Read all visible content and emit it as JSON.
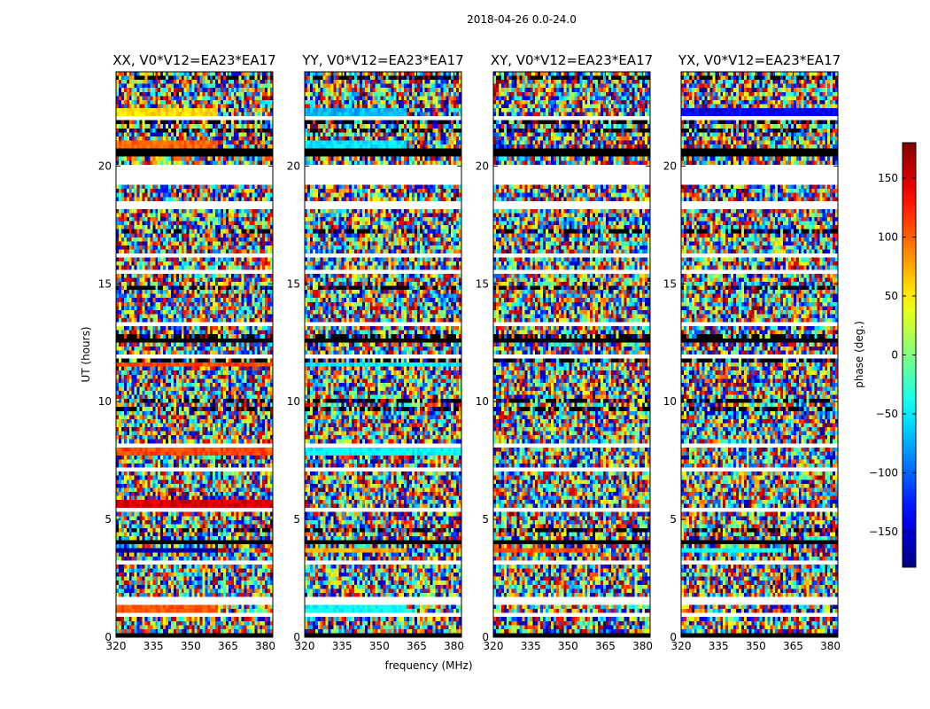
{
  "figure": {
    "suptitle": "2018-04-26 0.0-24.0",
    "xlabel": "frequency (MHz)",
    "ylabel": "UT (hours)",
    "colorbar_label": "phase (deg.)"
  },
  "chart_data": {
    "type": "heatmap",
    "description_of_axes": "phase vs frequency and UT, four polarization panels",
    "panels": [
      {
        "title": "XX, V0*V12=EA23*EA17",
        "polarization": "XX"
      },
      {
        "title": "YY, V0*V12=EA23*EA17",
        "polarization": "YY"
      },
      {
        "title": "XY, V0*V12=EA23*EA17",
        "polarization": "XY"
      },
      {
        "title": "YX, V0*V12=EA23*EA17",
        "polarization": "YX"
      }
    ],
    "x": {
      "label": "frequency (MHz)",
      "range": [
        320,
        383
      ],
      "ticks": [
        320,
        335,
        350,
        365,
        380
      ],
      "tick_labels": [
        "320",
        "335",
        "350",
        "365",
        "380"
      ]
    },
    "y": {
      "label": "UT (hours)",
      "range": [
        0,
        24
      ],
      "ticks": [
        0,
        5,
        10,
        15,
        20
      ],
      "tick_labels": [
        "0",
        "5",
        "10",
        "15",
        "20"
      ]
    },
    "colorbar": {
      "label": "phase (deg.)",
      "range": [
        -180,
        180
      ],
      "colormap": "jet",
      "ticks": [
        -150,
        -100,
        -50,
        0,
        50,
        100,
        150
      ],
      "tick_labels": [
        "−150",
        "−100",
        "−50",
        "0",
        "50",
        "100",
        "150"
      ]
    },
    "blank_time_ranges_hours": [
      [
        0.85,
        1.0
      ],
      [
        1.45,
        1.65
      ],
      [
        18.2,
        18.5
      ],
      [
        19.2,
        20.0
      ],
      [
        16.1,
        16.3
      ],
      [
        15.4,
        15.55
      ],
      [
        13.2,
        13.35
      ],
      [
        11.8,
        11.95
      ],
      [
        8.0,
        8.15
      ],
      [
        7.0,
        7.15
      ],
      [
        5.35,
        5.5
      ],
      [
        3.1,
        3.2
      ],
      [
        2.0,
        2.1
      ],
      [
        21.95,
        22.05
      ],
      [
        22.6,
        22.7
      ]
    ],
    "flagged_time_ranges_hours": [
      [
        20.45,
        20.75
      ],
      [
        4.0,
        4.15
      ],
      [
        12.55,
        12.7
      ],
      [
        0.05,
        0.15
      ]
    ],
    "coherent_phase_bands": [
      {
        "panel": "XX",
        "ut_range": [
          22.05,
          22.45
        ],
        "phase_deg": 60,
        "freq_range": [
          320,
          361
        ]
      },
      {
        "panel": "XX",
        "ut_range": [
          20.75,
          21.15
        ],
        "phase_deg": 100,
        "freq_range": [
          320,
          361
        ]
      },
      {
        "panel": "XX",
        "ut_range": [
          11.5,
          11.7
        ],
        "phase_deg": 110,
        "freq_range": [
          320,
          383
        ]
      },
      {
        "panel": "XX",
        "ut_range": [
          7.7,
          8.0
        ],
        "phase_deg": 110,
        "freq_range": [
          320,
          383
        ]
      },
      {
        "panel": "XX",
        "ut_range": [
          5.55,
          5.75
        ],
        "phase_deg": 150,
        "freq_range": [
          320,
          383
        ]
      },
      {
        "panel": "XX",
        "ut_range": [
          3.55,
          3.85
        ],
        "phase_deg": -165,
        "freq_range": [
          320,
          361
        ]
      },
      {
        "panel": "XX",
        "ut_range": [
          1.0,
          1.4
        ],
        "phase_deg": 105,
        "freq_range": [
          320,
          361
        ]
      },
      {
        "panel": "YY",
        "ut_range": [
          22.05,
          22.45
        ],
        "phase_deg": -70,
        "freq_range": [
          320,
          361
        ]
      },
      {
        "panel": "YY",
        "ut_range": [
          20.75,
          21.15
        ],
        "phase_deg": -55,
        "freq_range": [
          320,
          361
        ]
      },
      {
        "panel": "YY",
        "ut_range": [
          11.5,
          11.7
        ],
        "phase_deg": -50,
        "freq_range": [
          320,
          383
        ]
      },
      {
        "panel": "YY",
        "ut_range": [
          7.7,
          8.0
        ],
        "phase_deg": -45,
        "freq_range": [
          320,
          383
        ]
      },
      {
        "panel": "YY",
        "ut_range": [
          3.55,
          3.85
        ],
        "phase_deg": 75,
        "freq_range": [
          320,
          361
        ]
      },
      {
        "panel": "YY",
        "ut_range": [
          1.0,
          1.4
        ],
        "phase_deg": -45,
        "freq_range": [
          320,
          361
        ]
      },
      {
        "panel": "XY",
        "ut_range": [
          3.55,
          3.85
        ],
        "phase_deg": 110,
        "freq_range": [
          320,
          361
        ]
      },
      {
        "panel": "YX",
        "ut_range": [
          22.05,
          22.45
        ],
        "phase_deg": -140,
        "freq_range": [
          320,
          383
        ]
      },
      {
        "panel": "YX",
        "ut_range": [
          3.55,
          3.85
        ],
        "phase_deg": -40,
        "freq_range": [
          320,
          361
        ]
      }
    ]
  }
}
